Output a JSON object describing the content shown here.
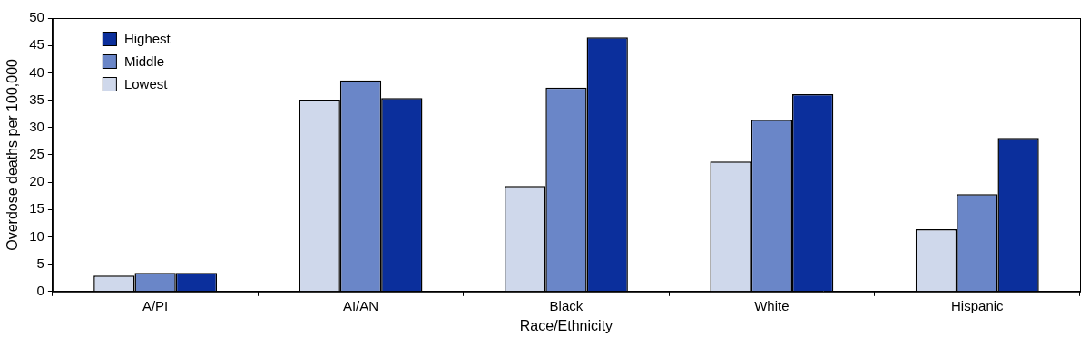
{
  "chart_data": {
    "type": "bar",
    "x_label": "Race/Ethnicity",
    "y_label": "Overdose deaths per 100,000",
    "categories": [
      "A/PI",
      "AI/AN",
      "Black",
      "White",
      "Hispanic"
    ],
    "series": [
      {
        "name": "Lowest",
        "color": "#cfd8eb",
        "values": [
          2.9,
          35.1,
          19.3,
          23.8,
          11.4
        ]
      },
      {
        "name": "Middle",
        "color": "#6a86c8",
        "values": [
          3.4,
          38.6,
          37.3,
          31.4,
          17.8
        ]
      },
      {
        "name": "Highest",
        "color": "#0b2f9c",
        "values": [
          3.4,
          35.4,
          46.5,
          36.1,
          28.1
        ]
      }
    ],
    "ylim": [
      0,
      50
    ],
    "yticks": [
      0,
      5,
      10,
      15,
      20,
      25,
      30,
      35,
      40,
      45,
      50
    ],
    "grid": false,
    "legend": "top-left"
  }
}
